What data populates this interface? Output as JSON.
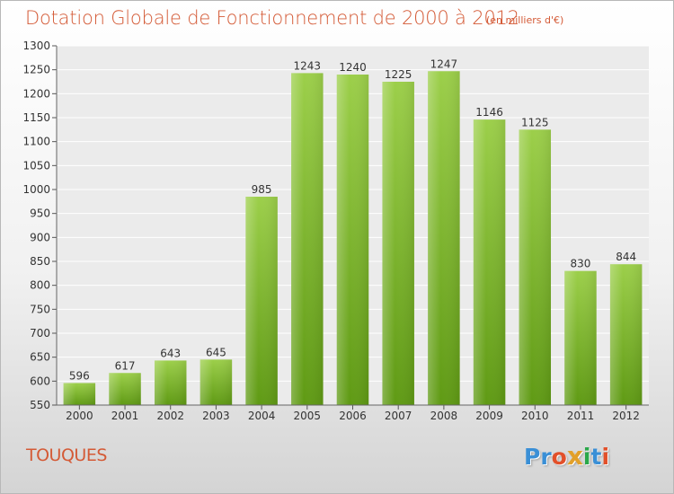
{
  "chart_data": {
    "type": "bar",
    "title": "Dotation Globale de Fonctionnement de 2000 à 2012",
    "subtitle": "(en milliers d'€)",
    "categories": [
      "2000",
      "2001",
      "2002",
      "2003",
      "2004",
      "2005",
      "2006",
      "2007",
      "2008",
      "2009",
      "2010",
      "2011",
      "2012"
    ],
    "values": [
      596,
      617,
      643,
      645,
      985,
      1243,
      1240,
      1225,
      1247,
      1146,
      1125,
      830,
      844
    ],
    "ylim": [
      550,
      1300
    ],
    "yticks": [
      550,
      600,
      650,
      700,
      750,
      800,
      850,
      900,
      950,
      1000,
      1050,
      1100,
      1150,
      1200,
      1250,
      1300
    ],
    "grid": true,
    "bar_color": "#7dbb2e"
  },
  "commune": "TOUQUES",
  "logo": {
    "letters": [
      "P",
      "r",
      "o",
      "x",
      "i",
      "t",
      "i"
    ],
    "colors": [
      "#3a8fd6",
      "#3a8fd6",
      "#e2502a",
      "#e2a02a",
      "#2aa84a",
      "#3a8fd6",
      "#e2502a"
    ]
  }
}
